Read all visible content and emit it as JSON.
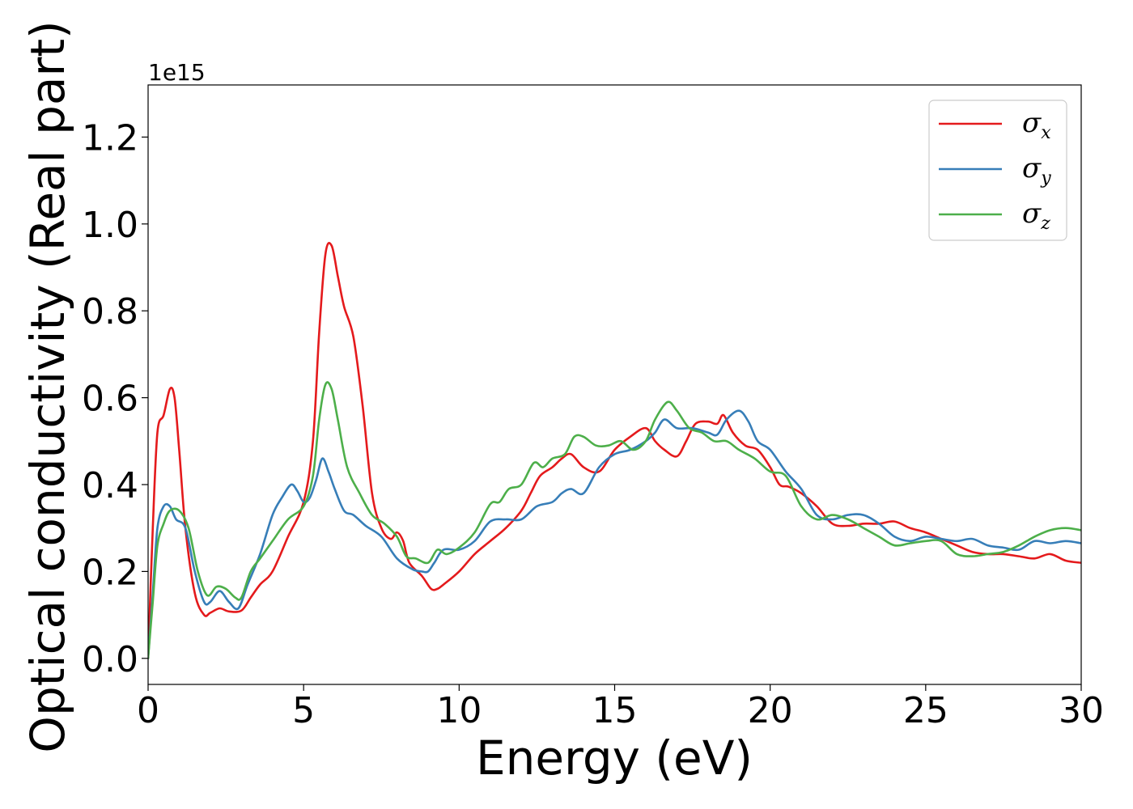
{
  "chart_data": {
    "type": "line",
    "xlabel": "Energy (eV)",
    "ylabel": "Optical conductivity (Real part)",
    "y_offset_text": "1e15",
    "xlim": [
      0,
      30
    ],
    "ylim": [
      -0.06,
      1.32
    ],
    "x_ticks": [
      0,
      5,
      10,
      15,
      20,
      25,
      30
    ],
    "x_tick_labels": [
      "0",
      "5",
      "10",
      "15",
      "20",
      "25",
      "30"
    ],
    "y_ticks": [
      0.0,
      0.2,
      0.4,
      0.6,
      0.8,
      1.0,
      1.2
    ],
    "y_tick_labels": [
      "0.0",
      "0.2",
      "0.4",
      "0.6",
      "0.8",
      "1.0",
      "1.2"
    ],
    "grid": false,
    "legend_position": "top-right",
    "series": [
      {
        "name": "σx",
        "symbol": "σ",
        "subscript": "x",
        "color": "#e41a1c",
        "x": [
          0,
          0.15,
          0.3,
          0.5,
          0.7,
          0.85,
          1.0,
          1.2,
          1.5,
          1.8,
          2.0,
          2.3,
          2.6,
          3.0,
          3.3,
          3.6,
          4.0,
          4.5,
          5.0,
          5.3,
          5.5,
          5.7,
          5.9,
          6.1,
          6.3,
          6.6,
          6.9,
          7.2,
          7.5,
          7.8,
          8.0,
          8.2,
          8.4,
          8.8,
          9.1,
          9.3,
          9.5,
          10.0,
          10.5,
          11.0,
          11.5,
          12.0,
          12.3,
          12.6,
          13.0,
          13.3,
          13.6,
          14.0,
          14.5,
          15.0,
          15.5,
          16.0,
          16.3,
          16.6,
          17.0,
          17.3,
          17.6,
          18.0,
          18.3,
          18.5,
          18.8,
          19.2,
          19.6,
          20.0,
          20.3,
          20.6,
          21.0,
          21.5,
          22.0,
          22.5,
          23.0,
          23.5,
          24.0,
          24.5,
          25.0,
          25.5,
          26.0,
          26.5,
          27.0,
          27.5,
          28.0,
          28.5,
          29.0,
          29.5,
          30.0
        ],
        "values": [
          0.0,
          0.3,
          0.52,
          0.56,
          0.62,
          0.6,
          0.48,
          0.3,
          0.15,
          0.1,
          0.105,
          0.115,
          0.108,
          0.11,
          0.14,
          0.17,
          0.2,
          0.28,
          0.36,
          0.5,
          0.75,
          0.93,
          0.95,
          0.88,
          0.81,
          0.74,
          0.58,
          0.38,
          0.3,
          0.275,
          0.29,
          0.27,
          0.22,
          0.19,
          0.16,
          0.16,
          0.17,
          0.2,
          0.24,
          0.27,
          0.3,
          0.34,
          0.38,
          0.42,
          0.44,
          0.46,
          0.47,
          0.44,
          0.43,
          0.48,
          0.51,
          0.53,
          0.5,
          0.48,
          0.465,
          0.5,
          0.54,
          0.545,
          0.54,
          0.56,
          0.52,
          0.49,
          0.48,
          0.44,
          0.4,
          0.395,
          0.38,
          0.35,
          0.31,
          0.305,
          0.31,
          0.31,
          0.315,
          0.3,
          0.29,
          0.275,
          0.26,
          0.245,
          0.24,
          0.24,
          0.235,
          0.23,
          0.24,
          0.225,
          0.22
        ]
      },
      {
        "name": "σy",
        "symbol": "σ",
        "subscript": "y",
        "color": "#377eb8",
        "x": [
          0,
          0.15,
          0.3,
          0.5,
          0.7,
          0.9,
          1.2,
          1.5,
          1.8,
          2.0,
          2.3,
          2.6,
          2.9,
          3.2,
          3.6,
          4.0,
          4.3,
          4.6,
          4.8,
          5.0,
          5.2,
          5.4,
          5.6,
          5.8,
          6.0,
          6.3,
          6.6,
          7.0,
          7.5,
          8.0,
          8.5,
          8.8,
          9.0,
          9.2,
          9.5,
          10.0,
          10.5,
          11.0,
          11.5,
          12.0,
          12.5,
          13.0,
          13.3,
          13.6,
          14.0,
          14.5,
          15.0,
          15.5,
          16.0,
          16.3,
          16.6,
          17.0,
          17.5,
          18.0,
          18.3,
          18.6,
          19.0,
          19.3,
          19.6,
          20.0,
          20.5,
          21.0,
          21.5,
          22.0,
          22.5,
          23.0,
          23.5,
          24.0,
          24.5,
          25.0,
          25.5,
          26.0,
          26.5,
          27.0,
          27.5,
          28.0,
          28.5,
          29.0,
          29.5,
          30.0
        ],
        "values": [
          0.0,
          0.15,
          0.3,
          0.35,
          0.35,
          0.32,
          0.3,
          0.2,
          0.13,
          0.13,
          0.155,
          0.13,
          0.115,
          0.17,
          0.24,
          0.33,
          0.37,
          0.4,
          0.385,
          0.36,
          0.37,
          0.41,
          0.46,
          0.43,
          0.39,
          0.34,
          0.33,
          0.305,
          0.28,
          0.23,
          0.205,
          0.2,
          0.2,
          0.22,
          0.25,
          0.25,
          0.27,
          0.315,
          0.32,
          0.32,
          0.35,
          0.36,
          0.38,
          0.39,
          0.38,
          0.44,
          0.47,
          0.48,
          0.5,
          0.52,
          0.55,
          0.53,
          0.53,
          0.52,
          0.515,
          0.55,
          0.57,
          0.545,
          0.5,
          0.48,
          0.43,
          0.39,
          0.33,
          0.32,
          0.33,
          0.33,
          0.31,
          0.28,
          0.27,
          0.28,
          0.275,
          0.27,
          0.275,
          0.26,
          0.255,
          0.25,
          0.27,
          0.265,
          0.27,
          0.265
        ]
      },
      {
        "name": "σz",
        "symbol": "σ",
        "subscript": "z",
        "color": "#4daf4a",
        "x": [
          0,
          0.15,
          0.3,
          0.5,
          0.7,
          1.0,
          1.3,
          1.6,
          1.9,
          2.2,
          2.5,
          2.8,
          3.0,
          3.3,
          3.6,
          4.0,
          4.5,
          5.0,
          5.3,
          5.5,
          5.7,
          5.9,
          6.1,
          6.4,
          6.8,
          7.2,
          7.6,
          8.0,
          8.3,
          8.6,
          9.0,
          9.3,
          9.6,
          10.0,
          10.5,
          11.0,
          11.3,
          11.6,
          12.0,
          12.4,
          12.7,
          13.0,
          13.4,
          13.7,
          14.0,
          14.4,
          14.8,
          15.2,
          15.6,
          16.0,
          16.3,
          16.7,
          17.0,
          17.4,
          17.8,
          18.2,
          18.6,
          19.0,
          19.5,
          20.0,
          20.5,
          21.0,
          21.5,
          22.0,
          22.5,
          23.0,
          23.5,
          24.0,
          24.5,
          25.0,
          25.5,
          26.0,
          26.5,
          27.0,
          27.5,
          28.0,
          28.5,
          29.0,
          29.5,
          30.0
        ],
        "values": [
          0.0,
          0.13,
          0.26,
          0.31,
          0.34,
          0.34,
          0.3,
          0.2,
          0.145,
          0.165,
          0.16,
          0.14,
          0.14,
          0.2,
          0.23,
          0.27,
          0.32,
          0.35,
          0.42,
          0.55,
          0.63,
          0.62,
          0.55,
          0.44,
          0.38,
          0.33,
          0.31,
          0.28,
          0.235,
          0.23,
          0.22,
          0.25,
          0.24,
          0.255,
          0.29,
          0.355,
          0.36,
          0.39,
          0.4,
          0.45,
          0.44,
          0.46,
          0.47,
          0.51,
          0.51,
          0.49,
          0.49,
          0.5,
          0.48,
          0.5,
          0.55,
          0.59,
          0.57,
          0.53,
          0.52,
          0.5,
          0.5,
          0.48,
          0.46,
          0.43,
          0.42,
          0.35,
          0.32,
          0.33,
          0.32,
          0.3,
          0.28,
          0.26,
          0.265,
          0.27,
          0.27,
          0.24,
          0.235,
          0.24,
          0.245,
          0.26,
          0.28,
          0.295,
          0.3,
          0.295
        ]
      }
    ]
  }
}
